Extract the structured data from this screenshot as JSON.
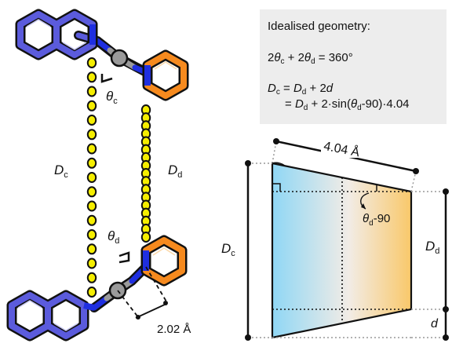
{
  "geometry_box": {
    "title": "Idealised geometry:",
    "eq1_parts": [
      "2",
      "θ",
      "c",
      " + 2",
      "θ",
      "d",
      " = 360°"
    ],
    "eq2_parts": [
      "D",
      "c",
      " = ",
      "D",
      "d",
      " + 2",
      "d"
    ],
    "eq3_parts": [
      "= ",
      "D",
      "d",
      " + 2·sin(",
      "θ",
      "d",
      "-90)·4.04"
    ]
  },
  "molecule_labels": {
    "theta_c": "θ",
    "theta_c_sub": "c",
    "theta_d": "θ",
    "theta_d_sub": "d",
    "Dc": "D",
    "Dc_sub": "c",
    "Dd": "D",
    "Dd_sub": "d",
    "distance": "2.02 Å"
  },
  "trapezoid_labels": {
    "length": "4.04 Å",
    "angle": "θ",
    "angle_sub": "d",
    "angle_suffix": "-90",
    "Dc": "D",
    "Dc_sub": "c",
    "Dd": "D",
    "Dd_sub": "d",
    "d": "d"
  },
  "colors": {
    "quinoline_blue": "#5b5bdc",
    "pyridine_orange": "#f68a1e",
    "nitrogen_blue": "#1f2fe0",
    "metal_gray": "#9a9a9a",
    "dot_yellow": "#f5ee00",
    "grad_blue": "#8fd7f5",
    "grad_orange": "#f9c86a",
    "box_gray": "#ededed"
  }
}
